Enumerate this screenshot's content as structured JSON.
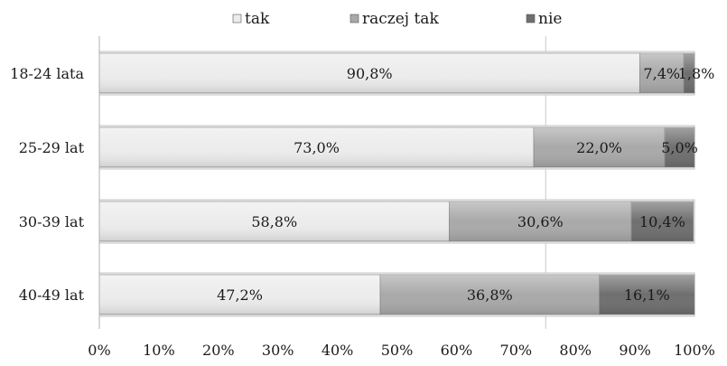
{
  "chart_data": {
    "type": "bar",
    "orientation": "horizontal",
    "stacked": "percent",
    "categories": [
      "18-24 lata",
      "25-29 lat",
      "30-39 lat",
      "40-49 lat"
    ],
    "series": [
      {
        "name": "tak",
        "values": [
          90.8,
          73.0,
          58.8,
          47.2
        ],
        "labels": [
          "90,8%",
          "73,0%",
          "58,8%",
          "47,2%"
        ],
        "color": "#ececec"
      },
      {
        "name": "raczej tak",
        "values": [
          7.4,
          22.0,
          30.6,
          36.8
        ],
        "labels": [
          "7,4%",
          "22,0%",
          "30,6%",
          "36,8%"
        ],
        "color": "#a9a9a9"
      },
      {
        "name": "nie",
        "values": [
          1.8,
          5.0,
          10.4,
          16.1
        ],
        "labels": [
          "1,8%",
          "5,0%",
          "10,4%",
          "16,1%"
        ],
        "color": "#6f6f6f"
      }
    ],
    "x_ticks": [
      "0%",
      "10%",
      "20%",
      "30%",
      "40%",
      "50%",
      "60%",
      "70%",
      "80%",
      "90%",
      "100%"
    ],
    "xlim": [
      0,
      100
    ],
    "legend_position": "top",
    "grid": "vertical gridline at 75%"
  }
}
